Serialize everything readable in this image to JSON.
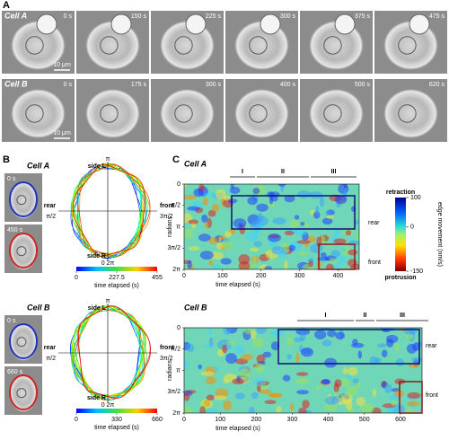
{
  "panel_a": {
    "label": "A",
    "rows": [
      {
        "cell": "Cell A",
        "times": [
          "0 s",
          "150 s",
          "225 s",
          "300 s",
          "375 s",
          "475 s"
        ],
        "scale": "10 μm"
      },
      {
        "cell": "Cell B",
        "times": [
          "0 s",
          "175 s",
          "300 s",
          "400 s",
          "500 s",
          "620 s"
        ],
        "scale": "10 μm"
      }
    ]
  },
  "panel_b": {
    "label": "B",
    "cells": [
      {
        "cell": "Cell A",
        "snapshots": [
          "0 s",
          "450 s"
        ],
        "directions": {
          "top": "side L",
          "bottom": "side R",
          "left": "rear",
          "right": "front"
        },
        "angles": {
          "top": "π",
          "bottom": "0 2π",
          "left": "π/2",
          "right": "3π/2"
        },
        "colorbar": {
          "lim": [
            0,
            455
          ],
          "ticks": [
            0,
            227.5,
            455
          ],
          "label": "time elapsed (s)"
        }
      },
      {
        "cell": "Cell B",
        "snapshots": [
          "0 s",
          "660 s"
        ],
        "directions": {
          "top": "side L",
          "bottom": "side R",
          "left": "rear",
          "right": "front"
        },
        "angles": {
          "top": "π",
          "bottom": "0 2π",
          "left": "π/2",
          "right": "3π/2"
        },
        "colorbar": {
          "lim": [
            0,
            660
          ],
          "ticks": [
            0,
            330,
            660
          ],
          "label": "time elapsed (s)"
        }
      }
    ]
  },
  "panel_c": {
    "label": "C",
    "colorbar": {
      "top": "retraction",
      "bottom": "protrusion",
      "lim": [
        -150,
        100
      ],
      "ticks": [
        100,
        0,
        -150
      ],
      "label": "edge movement (nm/s)"
    },
    "cells": [
      {
        "cell": "Cell A",
        "phases": [
          "I",
          "II",
          "III"
        ],
        "xlim": [
          0,
          455
        ],
        "xticks": [
          0,
          100,
          200,
          300,
          400
        ],
        "xlabel": "time elapsed (s)",
        "ylabel": "radians",
        "ylim": [
          0,
          6.2832
        ],
        "yticks": [
          0,
          {
            "value": 1.5708,
            "label": "π/2"
          },
          {
            "value": 3.1416,
            "label": "π"
          },
          {
            "value": 4.7124,
            "label": "3π/2"
          },
          {
            "value": 6.2832,
            "label": "2π"
          }
        ],
        "regions": [
          "rear",
          "front"
        ]
      },
      {
        "cell": "Cell B",
        "phases": [
          "I",
          "II",
          "III"
        ],
        "xlim": [
          0,
          660
        ],
        "xticks": [
          0,
          100,
          200,
          300,
          400,
          500,
          600
        ],
        "xlabel": "time elapsed (s)",
        "ylabel": "radians",
        "ylim": [
          0,
          6.2832
        ],
        "yticks": [
          0,
          {
            "value": 1.5708,
            "label": "π/2"
          },
          {
            "value": 3.1416,
            "label": "π"
          },
          {
            "value": 4.7124,
            "label": "3π/2"
          },
          {
            "value": 6.2832,
            "label": "2π"
          }
        ],
        "regions": [
          "rear",
          "front"
        ]
      }
    ]
  }
}
